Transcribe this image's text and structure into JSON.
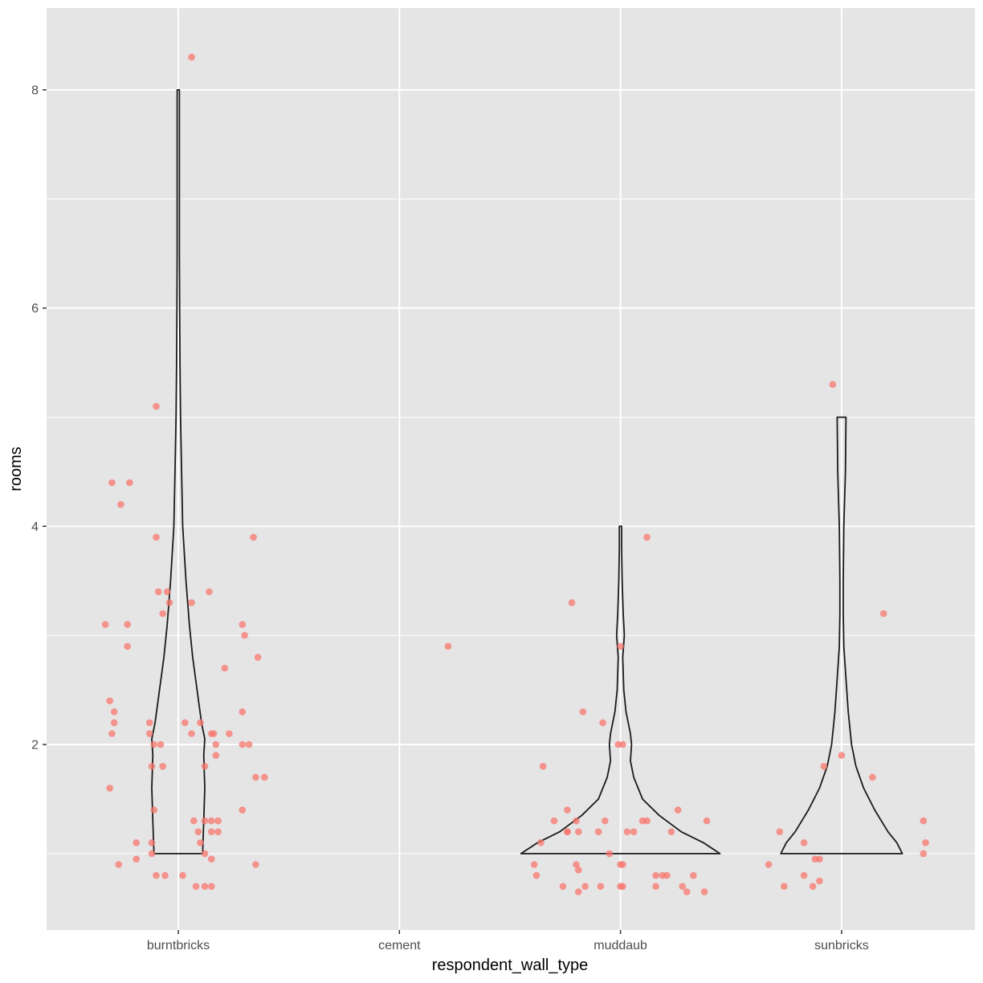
{
  "chart_data": {
    "type": "violin",
    "title": "",
    "xlabel": "respondent_wall_type",
    "ylabel": "rooms",
    "categories": [
      "burntbricks",
      "cement",
      "muddaub",
      "sunbricks"
    ],
    "y_ticks": [
      2,
      4,
      6,
      8
    ],
    "y_tick_labels": [
      "2",
      "4",
      "6",
      "8"
    ],
    "ylim": [
      0.3,
      8.75
    ],
    "grid": true,
    "colors": {
      "panel": "#e5e5e5",
      "grid": "#ffffff",
      "point": "#f8766d",
      "violin_stroke": "#1a1a1a",
      "tick_text": "#4d4d4d"
    },
    "violins": [
      {
        "category": "burntbricks",
        "profile": [
          {
            "y": 1.0,
            "w": 0.22
          },
          {
            "y": 1.3,
            "w": 0.23
          },
          {
            "y": 1.6,
            "w": 0.24
          },
          {
            "y": 1.9,
            "w": 0.23
          },
          {
            "y": 2.05,
            "w": 0.24
          },
          {
            "y": 2.2,
            "w": 0.21
          },
          {
            "y": 2.5,
            "w": 0.17
          },
          {
            "y": 2.8,
            "w": 0.13
          },
          {
            "y": 3.1,
            "w": 0.1
          },
          {
            "y": 3.5,
            "w": 0.07
          },
          {
            "y": 4.0,
            "w": 0.04
          },
          {
            "y": 4.5,
            "w": 0.03
          },
          {
            "y": 5.0,
            "w": 0.02
          },
          {
            "y": 5.5,
            "w": 0.015
          },
          {
            "y": 6.0,
            "w": 0.012
          },
          {
            "y": 6.5,
            "w": 0.01
          },
          {
            "y": 7.0,
            "w": 0.01
          },
          {
            "y": 7.5,
            "w": 0.01
          },
          {
            "y": 8.0,
            "w": 0.01
          }
        ]
      },
      {
        "category": "muddaub",
        "profile": [
          {
            "y": 1.0,
            "w": 0.9
          },
          {
            "y": 1.1,
            "w": 0.75
          },
          {
            "y": 1.2,
            "w": 0.55
          },
          {
            "y": 1.35,
            "w": 0.35
          },
          {
            "y": 1.5,
            "w": 0.2
          },
          {
            "y": 1.7,
            "w": 0.12
          },
          {
            "y": 1.85,
            "w": 0.09
          },
          {
            "y": 2.0,
            "w": 0.1
          },
          {
            "y": 2.1,
            "w": 0.09
          },
          {
            "y": 2.3,
            "w": 0.05
          },
          {
            "y": 2.5,
            "w": 0.03
          },
          {
            "y": 2.8,
            "w": 0.02
          },
          {
            "y": 3.0,
            "w": 0.035
          },
          {
            "y": 3.2,
            "w": 0.025
          },
          {
            "y": 3.5,
            "w": 0.015
          },
          {
            "y": 3.8,
            "w": 0.01
          },
          {
            "y": 4.0,
            "w": 0.01
          }
        ]
      },
      {
        "category": "sunbricks",
        "profile": [
          {
            "y": 1.0,
            "w": 0.55
          },
          {
            "y": 1.1,
            "w": 0.5
          },
          {
            "y": 1.2,
            "w": 0.42
          },
          {
            "y": 1.4,
            "w": 0.3
          },
          {
            "y": 1.6,
            "w": 0.2
          },
          {
            "y": 1.8,
            "w": 0.13
          },
          {
            "y": 2.0,
            "w": 0.09
          },
          {
            "y": 2.3,
            "w": 0.06
          },
          {
            "y": 2.6,
            "w": 0.04
          },
          {
            "y": 2.9,
            "w": 0.02
          },
          {
            "y": 3.2,
            "w": 0.015
          },
          {
            "y": 3.5,
            "w": 0.015
          },
          {
            "y": 4.0,
            "w": 0.02
          },
          {
            "y": 4.5,
            "w": 0.035
          },
          {
            "y": 5.0,
            "w": 0.04
          }
        ]
      }
    ],
    "points": {
      "burntbricks": [
        {
          "x": -0.22,
          "y": 4.4
        },
        {
          "x": -0.3,
          "y": 4.4
        },
        {
          "x": -0.26,
          "y": 4.2
        },
        {
          "x": -0.1,
          "y": 5.1
        },
        {
          "x": 0.06,
          "y": 8.3
        },
        {
          "x": -0.1,
          "y": 3.9
        },
        {
          "x": 0.34,
          "y": 3.9
        },
        {
          "x": -0.09,
          "y": 3.4
        },
        {
          "x": -0.04,
          "y": 3.3
        },
        {
          "x": -0.05,
          "y": 3.4
        },
        {
          "x": 0.06,
          "y": 3.3
        },
        {
          "x": 0.14,
          "y": 3.4
        },
        {
          "x": -0.07,
          "y": 3.2
        },
        {
          "x": -0.33,
          "y": 3.1
        },
        {
          "x": -0.23,
          "y": 3.1
        },
        {
          "x": 0.29,
          "y": 3.1
        },
        {
          "x": 0.3,
          "y": 3.0
        },
        {
          "x": -0.23,
          "y": 2.9
        },
        {
          "x": 0.21,
          "y": 2.7
        },
        {
          "x": 0.36,
          "y": 2.8
        },
        {
          "x": -0.31,
          "y": 2.4
        },
        {
          "x": -0.29,
          "y": 2.3
        },
        {
          "x": 0.29,
          "y": 2.3
        },
        {
          "x": -0.29,
          "y": 2.2
        },
        {
          "x": -0.13,
          "y": 2.2
        },
        {
          "x": -0.13,
          "y": 2.1
        },
        {
          "x": 0.03,
          "y": 2.2
        },
        {
          "x": 0.1,
          "y": 2.2
        },
        {
          "x": 0.06,
          "y": 2.1
        },
        {
          "x": 0.16,
          "y": 2.1
        },
        {
          "x": 0.15,
          "y": 2.1
        },
        {
          "x": -0.3,
          "y": 2.1
        },
        {
          "x": -0.11,
          "y": 2.0
        },
        {
          "x": 0.23,
          "y": 2.1
        },
        {
          "x": 0.29,
          "y": 2.0
        },
        {
          "x": 0.32,
          "y": 2.0
        },
        {
          "x": 0.17,
          "y": 2.0
        },
        {
          "x": -0.08,
          "y": 2.0
        },
        {
          "x": 0.17,
          "y": 1.9
        },
        {
          "x": -0.12,
          "y": 1.8
        },
        {
          "x": 0.12,
          "y": 1.8
        },
        {
          "x": -0.07,
          "y": 1.8
        },
        {
          "x": 0.35,
          "y": 1.7
        },
        {
          "x": 0.39,
          "y": 1.7
        },
        {
          "x": -0.31,
          "y": 1.6
        },
        {
          "x": -0.11,
          "y": 1.4
        },
        {
          "x": 0.29,
          "y": 1.4
        },
        {
          "x": 0.07,
          "y": 1.3
        },
        {
          "x": 0.12,
          "y": 1.3
        },
        {
          "x": 0.15,
          "y": 1.3
        },
        {
          "x": 0.18,
          "y": 1.3
        },
        {
          "x": 0.15,
          "y": 1.2
        },
        {
          "x": 0.18,
          "y": 1.2
        },
        {
          "x": 0.09,
          "y": 1.2
        },
        {
          "x": -0.19,
          "y": 1.1
        },
        {
          "x": -0.12,
          "y": 1.1
        },
        {
          "x": 0.1,
          "y": 1.1
        },
        {
          "x": -0.12,
          "y": 1.0
        },
        {
          "x": 0.12,
          "y": 1.0
        },
        {
          "x": -0.19,
          "y": 0.95
        },
        {
          "x": 0.15,
          "y": 0.95
        },
        {
          "x": 0.35,
          "y": 0.9
        },
        {
          "x": -0.27,
          "y": 0.9
        },
        {
          "x": -0.1,
          "y": 0.8
        },
        {
          "x": -0.06,
          "y": 0.8
        },
        {
          "x": 0.02,
          "y": 0.8
        },
        {
          "x": 0.08,
          "y": 0.7
        },
        {
          "x": 0.12,
          "y": 0.7
        },
        {
          "x": 0.15,
          "y": 0.7
        }
      ],
      "cement": [
        {
          "x": 0.22,
          "y": 2.9
        }
      ],
      "muddaub": [
        {
          "x": 0.12,
          "y": 3.9
        },
        {
          "x": -0.22,
          "y": 3.3
        },
        {
          "x": 0.0,
          "y": 2.9
        },
        {
          "x": -0.17,
          "y": 2.3
        },
        {
          "x": -0.08,
          "y": 2.2
        },
        {
          "x": -0.01,
          "y": 2.0
        },
        {
          "x": 0.01,
          "y": 2.0
        },
        {
          "x": -0.35,
          "y": 1.8
        },
        {
          "x": -0.3,
          "y": 1.3
        },
        {
          "x": -0.24,
          "y": 1.4
        },
        {
          "x": -0.2,
          "y": 1.3
        },
        {
          "x": -0.19,
          "y": 1.2
        },
        {
          "x": -0.24,
          "y": 1.2
        },
        {
          "x": -0.24,
          "y": 1.2
        },
        {
          "x": -0.1,
          "y": 1.2
        },
        {
          "x": -0.07,
          "y": 1.3
        },
        {
          "x": 0.03,
          "y": 1.2
        },
        {
          "x": 0.06,
          "y": 1.2
        },
        {
          "x": 0.1,
          "y": 1.3
        },
        {
          "x": 0.12,
          "y": 1.3
        },
        {
          "x": 0.26,
          "y": 1.4
        },
        {
          "x": 0.39,
          "y": 1.3
        },
        {
          "x": 0.23,
          "y": 1.2
        },
        {
          "x": -0.36,
          "y": 1.1
        },
        {
          "x": -0.05,
          "y": 1.0
        },
        {
          "x": -0.2,
          "y": 0.9
        },
        {
          "x": 0.0,
          "y": 0.9
        },
        {
          "x": 0.01,
          "y": 0.9
        },
        {
          "x": -0.39,
          "y": 0.9
        },
        {
          "x": -0.19,
          "y": 0.85
        },
        {
          "x": 0.16,
          "y": 0.8
        },
        {
          "x": 0.19,
          "y": 0.8
        },
        {
          "x": 0.33,
          "y": 0.8
        },
        {
          "x": -0.38,
          "y": 0.8
        },
        {
          "x": -0.16,
          "y": 0.7
        },
        {
          "x": 0.21,
          "y": 0.8
        },
        {
          "x": 0.28,
          "y": 0.7
        },
        {
          "x": -0.09,
          "y": 0.7
        },
        {
          "x": 0.0,
          "y": 0.7
        },
        {
          "x": 0.01,
          "y": 0.7
        },
        {
          "x": 0.16,
          "y": 0.7
        },
        {
          "x": 0.3,
          "y": 0.65
        },
        {
          "x": -0.26,
          "y": 0.7
        },
        {
          "x": -0.19,
          "y": 0.65
        },
        {
          "x": 0.38,
          "y": 0.65
        }
      ],
      "sunbricks": [
        {
          "x": -0.04,
          "y": 5.3
        },
        {
          "x": 0.19,
          "y": 3.2
        },
        {
          "x": 0.0,
          "y": 1.9
        },
        {
          "x": -0.08,
          "y": 1.8
        },
        {
          "x": 0.14,
          "y": 1.7
        },
        {
          "x": -0.28,
          "y": 1.2
        },
        {
          "x": 0.37,
          "y": 1.3
        },
        {
          "x": 0.38,
          "y": 1.1
        },
        {
          "x": 0.37,
          "y": 1.0
        },
        {
          "x": -0.17,
          "y": 1.1
        },
        {
          "x": -0.12,
          "y": 0.95
        },
        {
          "x": -0.1,
          "y": 0.95
        },
        {
          "x": -0.33,
          "y": 0.9
        },
        {
          "x": -0.26,
          "y": 0.7
        },
        {
          "x": -0.17,
          "y": 0.8
        },
        {
          "x": -0.1,
          "y": 0.75
        },
        {
          "x": -0.13,
          "y": 0.7
        }
      ]
    }
  }
}
